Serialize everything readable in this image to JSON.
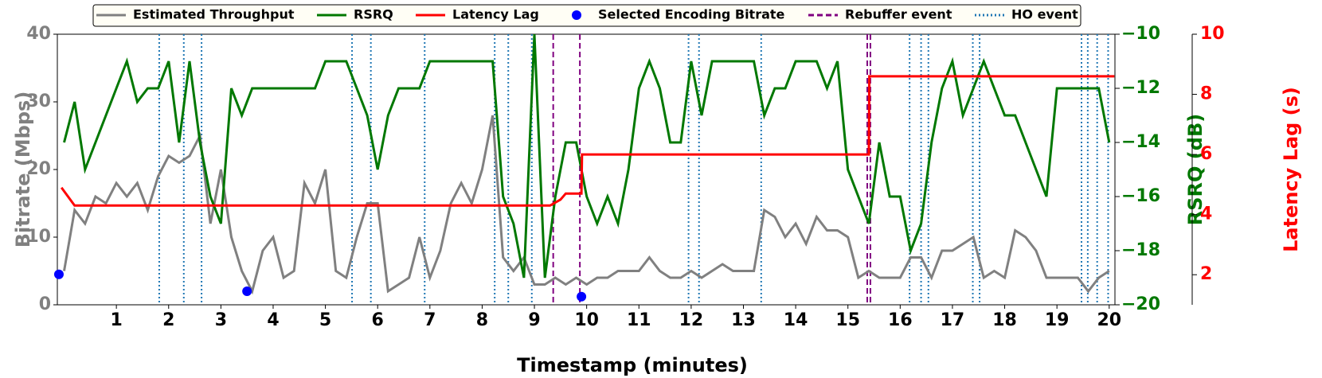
{
  "chart_data": {
    "type": "line",
    "xlabel": "Timestamp (minutes)",
    "ylabel": "Bitrate (Mbps)",
    "y2label": "RSRQ (dB)",
    "y3label": "Latency Lag (s)",
    "xlim": [
      -0.13,
      20.11
    ],
    "xticks": [
      1,
      2,
      3,
      4,
      5,
      6,
      7,
      8,
      9,
      10,
      11,
      12,
      13,
      14,
      15,
      16,
      17,
      18,
      19,
      20
    ],
    "ylim": [
      0,
      40
    ],
    "yticks": [
      0,
      10,
      20,
      30,
      40
    ],
    "y2lim": [
      -20,
      -10
    ],
    "y2ticks": [
      {
        "value": -10,
        "label": "−10"
      },
      {
        "value": -12,
        "label": "−12"
      },
      {
        "value": -14,
        "label": "−14"
      },
      {
        "value": -16,
        "label": "−16"
      },
      {
        "value": -18,
        "label": "−18"
      },
      {
        "value": -20,
        "label": "−20"
      }
    ],
    "y3lim": [
      1,
      10
    ],
    "y3ticks": [
      2,
      4,
      6,
      8,
      10
    ],
    "x": [
      0,
      0.2,
      0.4,
      0.6,
      0.8,
      1,
      1.2,
      1.4,
      1.6,
      1.8,
      2,
      2.2,
      2.4,
      2.6,
      2.8,
      3,
      3.2,
      3.4,
      3.6,
      3.8,
      4,
      4.2,
      4.4,
      4.6,
      4.8,
      5,
      5.2,
      5.4,
      5.6,
      5.8,
      6,
      6.2,
      6.4,
      6.6,
      6.8,
      7,
      7.2,
      7.4,
      7.6,
      7.8,
      8,
      8.2,
      8.4,
      8.6,
      8.8,
      9,
      9.2,
      9.4,
      9.6,
      9.8,
      10,
      10.2,
      10.4,
      10.6,
      10.8,
      11,
      11.2,
      11.4,
      11.6,
      11.8,
      12,
      12.2,
      12.4,
      12.6,
      12.8,
      13,
      13.2,
      13.4,
      13.6,
      13.8,
      14,
      14.2,
      14.4,
      14.6,
      14.8,
      15,
      15.2,
      15.4,
      15.6,
      15.8,
      16,
      16.2,
      16.4,
      16.6,
      16.8,
      17,
      17.2,
      17.4,
      17.6,
      17.8,
      18,
      18.2,
      18.4,
      18.6,
      18.8,
      19,
      19.2,
      19.4,
      19.6,
      19.8,
      20
    ],
    "series": [
      {
        "name": "Estimated Throughput",
        "color": "#808080",
        "kind": "line",
        "axis": "y",
        "values": [
          5,
          14,
          12,
          16,
          15,
          18,
          16,
          18,
          14,
          19,
          22,
          21,
          22,
          25,
          12,
          20,
          10,
          5,
          2,
          8,
          10,
          4,
          5,
          18,
          15,
          20,
          5,
          4,
          10,
          15,
          15,
          2,
          3,
          4,
          10,
          4,
          8,
          15,
          18,
          15,
          20,
          28,
          7,
          5,
          7,
          3,
          3,
          4,
          3,
          4,
          3,
          4,
          4,
          5,
          5,
          5,
          7,
          5,
          4,
          4,
          5,
          4,
          5,
          6,
          5,
          5,
          5,
          14,
          13,
          10,
          12,
          9,
          13,
          11,
          11,
          10,
          4,
          5,
          4,
          4,
          4,
          7,
          7,
          4,
          8,
          8,
          9,
          10,
          4,
          5,
          4,
          11,
          10,
          8,
          4,
          4,
          4,
          4,
          2,
          4,
          5
        ]
      },
      {
        "name": "RSRQ",
        "color": "#007800",
        "kind": "line",
        "axis": "y2",
        "values": [
          -14,
          -12.5,
          -15,
          -14,
          -13,
          -12,
          -11,
          -12.5,
          -12,
          -12,
          -11,
          -14,
          -11,
          -14,
          -16,
          -17,
          -12,
          -13,
          -12,
          -12,
          -12,
          -12,
          -12,
          -12,
          -12,
          -11,
          -11,
          -11,
          -12,
          -13,
          -15,
          -13,
          -12,
          -12,
          -12,
          -11,
          -11,
          -11,
          -11,
          -11,
          -11,
          -11,
          -16,
          -17,
          -19,
          -10,
          -19,
          -16,
          -14,
          -14,
          -16,
          -17,
          -16,
          -17,
          -15,
          -12,
          -11,
          -12,
          -14,
          -14,
          -11,
          -13,
          -11,
          -11,
          -11,
          -11,
          -11,
          -13,
          -12,
          -12,
          -11,
          -11,
          -11,
          -12,
          -11,
          -15,
          -16,
          -17,
          -14,
          -16,
          -16,
          -18,
          -17,
          -14,
          -12,
          -11,
          -13,
          -12,
          -11,
          -12,
          -13,
          -13,
          -14,
          -15,
          -16,
          -12,
          -12,
          -12,
          -12,
          -12,
          -14
        ]
      },
      {
        "name": "Latency Lag",
        "color": "#ff0000",
        "kind": "line",
        "axis": "y3",
        "x": [
          -0.05,
          0.2,
          9.3,
          9.5,
          9.6,
          9.9,
          9.91,
          15.4,
          15.41,
          20.1
        ],
        "values": [
          4.9,
          4.3,
          4.3,
          4.5,
          4.7,
          4.7,
          6.0,
          6.0,
          8.6,
          8.6
        ]
      },
      {
        "name": "Selected Encoding Bitrate",
        "color": "#0000ff",
        "kind": "scatter",
        "axis": "y",
        "x": [
          -0.1,
          3.5,
          9.9
        ],
        "values": [
          4.5,
          2,
          1.2
        ]
      },
      {
        "name": "Rebuffer event",
        "color": "#800080",
        "kind": "vline",
        "dash": "dashed",
        "x": [
          9.36,
          9.87,
          15.37,
          15.43
        ]
      },
      {
        "name": "HO event",
        "color": "#1f77b4",
        "kind": "vline",
        "dash": "dotted",
        "x": [
          1.82,
          2.29,
          2.63,
          5.51,
          5.87,
          6.9,
          8.24,
          8.5,
          8.95,
          11.95,
          12.15,
          13.34,
          16.18,
          16.4,
          16.54,
          17.39,
          17.52,
          19.47,
          19.59,
          19.77,
          19.98
        ]
      }
    ]
  }
}
